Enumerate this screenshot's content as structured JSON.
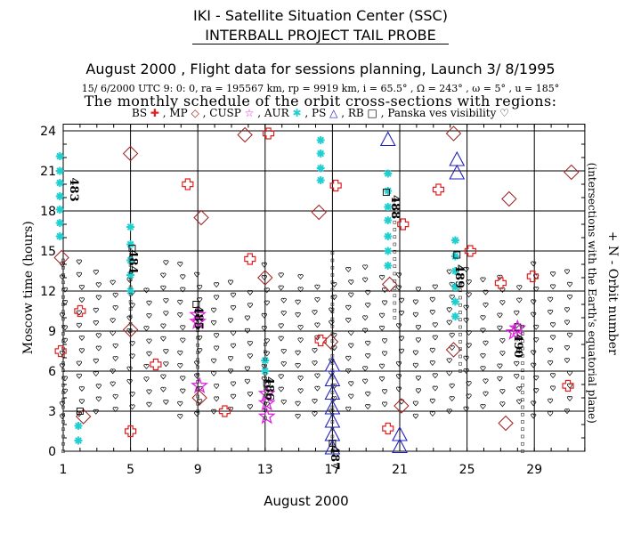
{
  "header": {
    "line1": "IKI - Satellite Situation Center (SSC)",
    "line2": "INTERBALL PROJECT TAIL PROBE",
    "line3": "August 2000 ,  Flight data for sessions planning,  Launch  3/ 8/1995",
    "line4": "15/ 6/2000 UTC  9: 0: 0, ra = 195567 km, rp =   9919 km, i = 65.5° , Ω = 243° , ω =   5° , u = 185°",
    "line5": "The monthly schedule of the orbit cross-sections with regions:"
  },
  "legend": [
    {
      "label": "BS",
      "symbol": "✚",
      "color": "#e02020"
    },
    {
      "label": "MP",
      "symbol": "◇",
      "color": "#a02020"
    },
    {
      "label": "CUSP",
      "symbol": "☆",
      "color": "#e020e0"
    },
    {
      "label": "AUR",
      "symbol": "✱",
      "color": "#20d0d0"
    },
    {
      "label": "PS",
      "symbol": "△",
      "color": "#2020c0"
    },
    {
      "label": "RB",
      "symbol": "□",
      "color": "#000000"
    },
    {
      "label": "Panska ves visibility",
      "symbol": "♡",
      "color": "#000000"
    }
  ],
  "colors": {
    "bs": "#e02020",
    "mp": "#a02020",
    "cusp": "#e020e0",
    "aur": "#20d0d0",
    "ps": "#2020c0",
    "rb": "#000000",
    "vis": "#000000",
    "grid": "#000000"
  },
  "chart_data": {
    "type": "scatter",
    "xlabel": "August 2000",
    "ylabel": "Moscow time (hours)",
    "right_label": "+ N - Orbit number",
    "right_sublabel": "(intersections with the Earth's equatorial plane)",
    "xlim": [
      1,
      32
    ],
    "ylim": [
      0,
      24.5
    ],
    "x_ticks": [
      1,
      5,
      9,
      13,
      17,
      21,
      25,
      29
    ],
    "y_ticks": [
      0,
      3,
      6,
      9,
      12,
      15,
      18,
      21,
      24
    ],
    "x_grid": [
      1,
      5,
      9,
      13,
      17,
      21,
      25,
      29
    ],
    "y_grid": [
      0,
      3,
      6,
      9,
      12,
      15,
      18,
      21,
      24
    ],
    "orbit_labels": [
      {
        "label": "483",
        "x": 1.7,
        "y": 20.5
      },
      {
        "label": "484",
        "x": 5.2,
        "y": 15.1
      },
      {
        "label": "485",
        "x": 9.1,
        "y": 10.9
      },
      {
        "label": "486",
        "x": 13.3,
        "y": 5.6
      },
      {
        "label": "487",
        "x": 17.2,
        "y": 0.4
      },
      {
        "label": "488",
        "x": 20.8,
        "y": 19.2
      },
      {
        "label": "489",
        "x": 24.6,
        "y": 14.0
      },
      {
        "label": "490",
        "x": 28.1,
        "y": 8.8
      }
    ],
    "series": {
      "bs": [
        [
          0.85,
          7.5
        ],
        [
          2.0,
          10.5
        ],
        [
          5.0,
          1.5
        ],
        [
          6.5,
          6.5
        ],
        [
          8.4,
          20.0
        ],
        [
          10.6,
          3.0
        ],
        [
          12.1,
          14.4
        ],
        [
          13.2,
          23.8
        ],
        [
          16.3,
          8.3
        ],
        [
          17.2,
          19.9
        ],
        [
          20.3,
          1.7
        ],
        [
          21.2,
          17.0
        ],
        [
          23.3,
          19.6
        ],
        [
          25.2,
          15.0
        ],
        [
          27.0,
          12.6
        ],
        [
          28.9,
          13.1
        ],
        [
          31.0,
          4.9
        ]
      ],
      "mp": [
        [
          0.9,
          14.5
        ],
        [
          2.2,
          2.6
        ],
        [
          5.0,
          9.1
        ],
        [
          5.0,
          22.3
        ],
        [
          9.1,
          4.0
        ],
        [
          9.2,
          17.5
        ],
        [
          11.8,
          23.7
        ],
        [
          13.0,
          13.0
        ],
        [
          16.2,
          17.9
        ],
        [
          16.9,
          8.2
        ],
        [
          20.4,
          12.5
        ],
        [
          21.1,
          3.4
        ],
        [
          24.2,
          7.6
        ],
        [
          24.2,
          23.8
        ],
        [
          27.3,
          2.1
        ],
        [
          27.5,
          18.9
        ],
        [
          31.2,
          20.9
        ]
      ],
      "cusp": [
        [
          9.1,
          4.9
        ],
        [
          9.0,
          9.7
        ],
        [
          9.0,
          10.2
        ],
        [
          13.1,
          2.6
        ],
        [
          13.1,
          3.6
        ],
        [
          13.1,
          4.3
        ],
        [
          27.8,
          8.9
        ],
        [
          28.0,
          9.2
        ]
      ],
      "aur": [
        [
          0.8,
          16.1
        ],
        [
          0.8,
          17.1
        ],
        [
          0.8,
          18.1
        ],
        [
          0.8,
          19.1
        ],
        [
          0.8,
          20.1
        ],
        [
          0.8,
          21.0
        ],
        [
          0.8,
          22.1
        ],
        [
          1.9,
          0.8
        ],
        [
          1.9,
          1.9
        ],
        [
          5.0,
          12.0
        ],
        [
          5.0,
          13.2
        ],
        [
          5.0,
          14.3
        ],
        [
          5.0,
          15.5
        ],
        [
          5.0,
          16.8
        ],
        [
          13.0,
          6.0
        ],
        [
          13.0,
          6.8
        ],
        [
          16.3,
          20.3
        ],
        [
          16.3,
          21.2
        ],
        [
          16.3,
          22.3
        ],
        [
          16.3,
          23.3
        ],
        [
          20.3,
          13.9
        ],
        [
          20.3,
          15.0
        ],
        [
          20.3,
          16.1
        ],
        [
          20.3,
          17.3
        ],
        [
          20.3,
          18.3
        ],
        [
          20.3,
          19.5
        ],
        [
          20.3,
          20.8
        ],
        [
          24.3,
          10.1
        ],
        [
          24.3,
          11.2
        ],
        [
          24.3,
          12.3
        ],
        [
          24.3,
          13.5
        ],
        [
          24.3,
          14.6
        ],
        [
          24.3,
          15.8
        ]
      ],
      "ps": [
        [
          17.0,
          0.2
        ],
        [
          17.0,
          1.2
        ],
        [
          17.0,
          2.2
        ],
        [
          17.0,
          3.2
        ],
        [
          17.0,
          4.3
        ],
        [
          17.0,
          5.3
        ],
        [
          17.0,
          6.4
        ],
        [
          20.3,
          23.3
        ],
        [
          21.0,
          0.3
        ],
        [
          21.0,
          1.2
        ],
        [
          24.4,
          20.8
        ],
        [
          24.4,
          21.8
        ]
      ],
      "rb": [
        [
          2.0,
          3.0
        ],
        [
          5.1,
          15.2
        ],
        [
          8.9,
          11.0
        ],
        [
          13.1,
          5.1
        ],
        [
          17.0,
          0.6
        ],
        [
          20.2,
          19.4
        ],
        [
          24.4,
          14.7
        ],
        [
          28.0,
          9.3
        ]
      ]
    }
  }
}
